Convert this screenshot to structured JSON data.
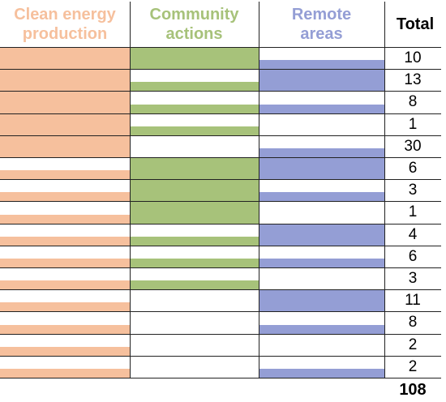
{
  "headers": {
    "clean": [
      "Clean energy",
      "production"
    ],
    "community": [
      "Community",
      "actions"
    ],
    "remote": [
      "Remote",
      "areas"
    ],
    "total": "Total"
  },
  "colors": {
    "clean": "#f6c09d",
    "community": "#a7c27a",
    "remote": "#949ed5",
    "grid": "#222222"
  },
  "chart_data": {
    "type": "table",
    "columns": [
      "Clean energy production",
      "Community actions",
      "Remote areas",
      "Total"
    ],
    "rows": [
      {
        "clean": "full",
        "community": "full",
        "remote": "lower",
        "total": 10
      },
      {
        "clean": "full",
        "community": "lower",
        "remote": "full",
        "total": 13
      },
      {
        "clean": "full",
        "community": "lower",
        "remote": "lower",
        "total": 8
      },
      {
        "clean": "full",
        "community": "lower",
        "remote": "none",
        "total": 1
      },
      {
        "clean": "full",
        "community": "none",
        "remote": "lower",
        "total": 30
      },
      {
        "clean": "lower",
        "community": "full",
        "remote": "full",
        "total": 6
      },
      {
        "clean": "lower",
        "community": "full",
        "remote": "lower",
        "total": 3
      },
      {
        "clean": "lower",
        "community": "full",
        "remote": "none",
        "total": 1
      },
      {
        "clean": "lower",
        "community": "lower",
        "remote": "full",
        "total": 4
      },
      {
        "clean": "lower",
        "community": "lower",
        "remote": "lower",
        "total": 6
      },
      {
        "clean": "lower",
        "community": "lower",
        "remote": "none",
        "total": 3
      },
      {
        "clean": "lower",
        "community": "none",
        "remote": "full",
        "total": 11
      },
      {
        "clean": "lower",
        "community": "none",
        "remote": "lower",
        "total": 8
      },
      {
        "clean": "lower",
        "community": "none",
        "remote": "none",
        "total": 2
      },
      {
        "clean": "lower",
        "community": "none",
        "remote": "lower",
        "total": 2
      }
    ],
    "grand_total": 108
  }
}
